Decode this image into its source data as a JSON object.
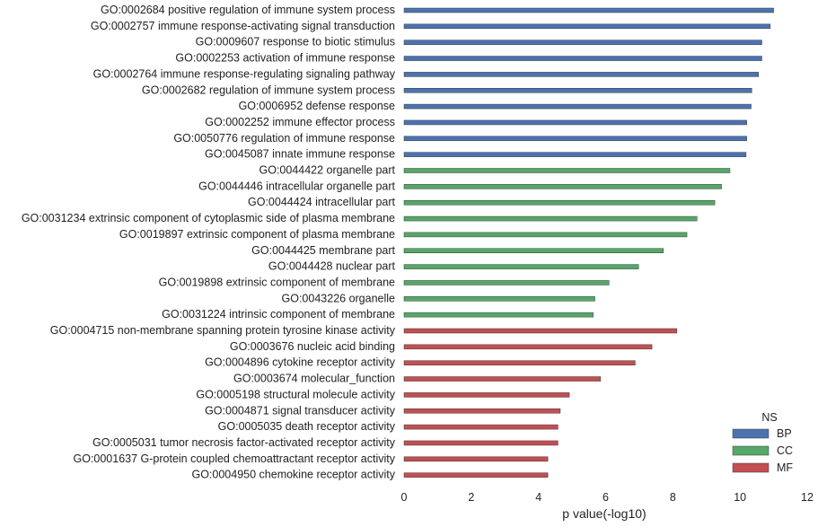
{
  "chart_data": {
    "type": "bar",
    "orientation": "horizontal",
    "xlabel": "p value(-log10)",
    "ylabel": "",
    "xlim": [
      0,
      12
    ],
    "xticks": [
      0,
      2,
      4,
      6,
      8,
      10,
      12
    ],
    "grid": false,
    "legend": {
      "title": "NS",
      "placement": "bottom-right",
      "entries": [
        {
          "name": "BP",
          "color": "#4c72b0"
        },
        {
          "name": "CC",
          "color": "#55a868"
        },
        {
          "name": "MF",
          "color": "#c44e52"
        }
      ]
    },
    "categories": [
      "GO:0002684 positive regulation of immune system process",
      "GO:0002757 immune response-activating signal transduction",
      "GO:0009607 response to biotic stimulus",
      "GO:0002253 activation of immune response",
      "GO:0002764 immune response-regulating signaling pathway",
      "GO:0002682 regulation of immune system process",
      "GO:0006952 defense response",
      "GO:0002252 immune effector process",
      "GO:0050776 regulation of immune response",
      "GO:0045087 innate immune response",
      "GO:0044422 organelle part",
      "GO:0044446 intracellular organelle part",
      "GO:0044424 intracellular part",
      "GO:0031234 extrinsic component of cytoplasmic side of plasma membrane",
      "GO:0019897 extrinsic component of plasma membrane",
      "GO:0044425 membrane part",
      "GO:0044428 nuclear part",
      "GO:0019898 extrinsic component of membrane",
      "GO:0043226 organelle",
      "GO:0031224 intrinsic component of membrane",
      "GO:0004715 non-membrane spanning protein tyrosine kinase activity",
      "GO:0003676 nucleic acid binding",
      "GO:0004896 cytokine receptor activity",
      "GO:0003674 molecular_function",
      "GO:0005198 structural molecule activity",
      "GO:0004871 signal transducer activity",
      "GO:0005035 death receptor activity",
      "GO:0005031 tumor necrosis factor-activated receptor activity",
      "GO:0001637 G-protein coupled chemoattractant receptor activity",
      "GO:0004950 chemokine receptor activity"
    ],
    "values": [
      11.0,
      10.9,
      10.65,
      10.65,
      10.55,
      10.35,
      10.33,
      10.2,
      10.2,
      10.18,
      9.7,
      9.45,
      9.25,
      8.72,
      8.42,
      7.72,
      6.98,
      6.1,
      5.68,
      5.63,
      8.12,
      7.38,
      6.88,
      5.85,
      4.92,
      4.65,
      4.58,
      4.58,
      4.28,
      4.28
    ],
    "groups": [
      "BP",
      "BP",
      "BP",
      "BP",
      "BP",
      "BP",
      "BP",
      "BP",
      "BP",
      "BP",
      "CC",
      "CC",
      "CC",
      "CC",
      "CC",
      "CC",
      "CC",
      "CC",
      "CC",
      "CC",
      "MF",
      "MF",
      "MF",
      "MF",
      "MF",
      "MF",
      "MF",
      "MF",
      "MF",
      "MF"
    ]
  }
}
